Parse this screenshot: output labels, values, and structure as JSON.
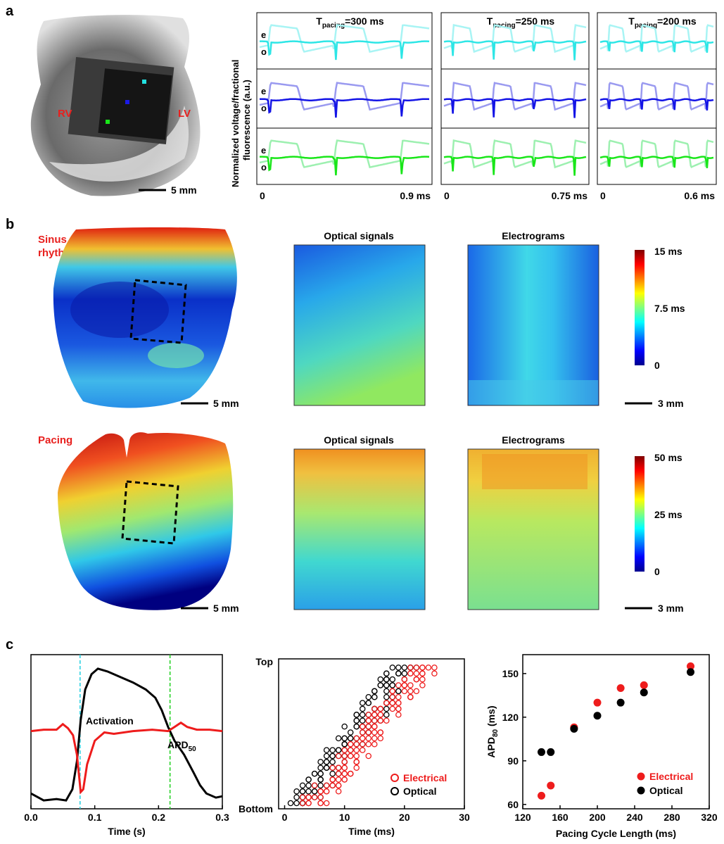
{
  "panels": {
    "a": "a",
    "b": "b",
    "c": "c"
  },
  "panel_a": {
    "ylabel_line1": "Normalized voltage/fractional",
    "ylabel_line2": "fluorescence (a.u.)",
    "photo_labels": {
      "rv": "RV",
      "lv": "LV"
    },
    "scale_bar": "5 mm",
    "row_labels": {
      "e": "e",
      "o": "o"
    },
    "row_colors": [
      {
        "dark": "#2ee6e6",
        "light": "#a8f4f4"
      },
      {
        "dark": "#1414e6",
        "light": "#9a9af0"
      },
      {
        "dark": "#19e619",
        "light": "#9df0b0"
      }
    ],
    "pixel_markers": [
      "#22e0e0",
      "#1a1ae6",
      "#19e619"
    ],
    "columns": [
      {
        "title_pre": "T",
        "title_sub": "pacing",
        "title_post": "=300 ms",
        "x_start": "0",
        "x_end": "0.9 ms",
        "beats": 3
      },
      {
        "title_pre": "T",
        "title_sub": "pacing",
        "title_post": "=250 ms",
        "x_start": "0",
        "x_end": "0.75 ms",
        "beats": 4
      },
      {
        "title_pre": "T",
        "title_sub": "pacing",
        "title_post": "=200 ms",
        "x_start": "0",
        "x_end": "0.6 ms",
        "beats": 4
      }
    ]
  },
  "panel_b": {
    "rows": [
      {
        "label_line1": "Sinus",
        "label_line2": "rhythm",
        "map_titles": [
          "Optical signals",
          "Electrograms"
        ],
        "colorbar_ticks": [
          "15 ms",
          "7.5 ms",
          "0"
        ],
        "heart_scale": "5 mm",
        "map_scale": "3 mm"
      },
      {
        "label_line1": "Pacing",
        "label_line2": "",
        "map_titles": [
          "Optical signals",
          "Electrograms"
        ],
        "colorbar_ticks": [
          "50 ms",
          "25 ms",
          "0"
        ],
        "heart_scale": "5 mm",
        "map_scale": "3 mm"
      }
    ],
    "label_color": "#e8201e"
  },
  "chart_data": [
    {
      "type": "line",
      "xlabel": "Time (s)",
      "xlim": [
        0.0,
        0.3
      ],
      "x_ticks": [
        "0.0",
        "0.1",
        "0.2",
        "0.3"
      ],
      "annotations": [
        "Activation",
        "APD50"
      ],
      "apd_label": {
        "main": "APD",
        "sub": "50"
      },
      "markers": [
        {
          "x": 0.077,
          "color": "#22d0e0"
        },
        {
          "x": 0.218,
          "color": "#20d020"
        }
      ],
      "series": [
        {
          "color": "#000000",
          "points": [
            [
              0.0,
              0.07
            ],
            [
              0.02,
              0.02
            ],
            [
              0.04,
              0.03
            ],
            [
              0.055,
              0.02
            ],
            [
              0.065,
              0.1
            ],
            [
              0.072,
              0.3
            ],
            [
              0.078,
              0.6
            ],
            [
              0.085,
              0.82
            ],
            [
              0.095,
              0.93
            ],
            [
              0.105,
              0.97
            ],
            [
              0.12,
              0.95
            ],
            [
              0.14,
              0.91
            ],
            [
              0.16,
              0.87
            ],
            [
              0.18,
              0.82
            ],
            [
              0.195,
              0.76
            ],
            [
              0.205,
              0.67
            ],
            [
              0.215,
              0.55
            ],
            [
              0.225,
              0.45
            ],
            [
              0.24,
              0.35
            ],
            [
              0.255,
              0.22
            ],
            [
              0.265,
              0.13
            ],
            [
              0.275,
              0.07
            ],
            [
              0.29,
              0.04
            ],
            [
              0.3,
              0.05
            ]
          ]
        },
        {
          "color": "#ee1c1c",
          "points": [
            [
              0.0,
              0.52
            ],
            [
              0.02,
              0.53
            ],
            [
              0.04,
              0.53
            ],
            [
              0.05,
              0.57
            ],
            [
              0.058,
              0.54
            ],
            [
              0.066,
              0.49
            ],
            [
              0.072,
              0.35
            ],
            [
              0.078,
              0.08
            ],
            [
              0.082,
              0.1
            ],
            [
              0.088,
              0.28
            ],
            [
              0.1,
              0.45
            ],
            [
              0.115,
              0.51
            ],
            [
              0.13,
              0.5
            ],
            [
              0.16,
              0.52
            ],
            [
              0.19,
              0.53
            ],
            [
              0.215,
              0.52
            ],
            [
              0.225,
              0.55
            ],
            [
              0.235,
              0.58
            ],
            [
              0.245,
              0.55
            ],
            [
              0.26,
              0.53
            ],
            [
              0.28,
              0.53
            ],
            [
              0.3,
              0.52
            ]
          ]
        }
      ]
    },
    {
      "type": "scatter",
      "xlabel": "Time (ms)",
      "xlim": [
        -1,
        30
      ],
      "x_ticks": [
        "0",
        "10",
        "20",
        "30"
      ],
      "ylabel_top": "Top",
      "ylabel_bottom": "Bottom",
      "rows": 24,
      "legend": [
        "Electrical",
        "Optical"
      ],
      "series": [
        {
          "name": "Electrical",
          "color": "#ee1c1c",
          "trend": {
            "x_at_bottom": 5,
            "x_at_top": 23,
            "spread": 5
          }
        },
        {
          "name": "Optical",
          "color": "#000000",
          "trend": {
            "x_at_bottom": 3,
            "x_at_top": 20,
            "spread": 5
          }
        }
      ]
    },
    {
      "type": "scatter",
      "xlabel": "Pacing Cycle Length (ms)",
      "ylabel": {
        "main": "APD",
        "sub": "80",
        "unit": " (ms)"
      },
      "xlim": [
        120,
        320
      ],
      "ylim": [
        57,
        163
      ],
      "x_ticks": [
        120,
        160,
        200,
        240,
        280,
        320
      ],
      "y_ticks": [
        60,
        90,
        120,
        150
      ],
      "legend": [
        "Electrical",
        "Optical"
      ],
      "series": [
        {
          "name": "Electrical",
          "color": "#ee1c1c",
          "x": [
            140,
            150,
            175,
            200,
            225,
            250,
            300
          ],
          "y": [
            66,
            73,
            113,
            130,
            140,
            142,
            155
          ]
        },
        {
          "name": "Optical",
          "color": "#000000",
          "x": [
            140,
            150,
            175,
            200,
            225,
            250,
            300
          ],
          "y": [
            96,
            96,
            112,
            121,
            130,
            137,
            151
          ]
        }
      ]
    }
  ]
}
